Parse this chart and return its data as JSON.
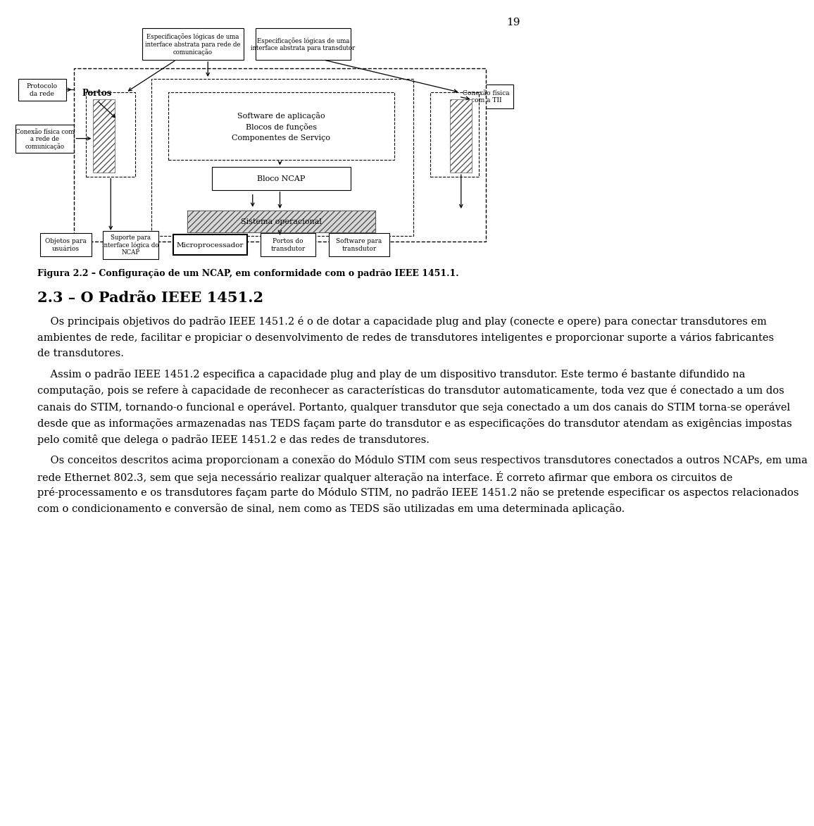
{
  "page_number": "19",
  "background_color": "#ffffff",
  "text_color": "#000000",
  "figure_caption": "Figura 2.2 – Configuração de um NCAP, em conformidade com o padrão IEEE 1451.1.",
  "section_title": "2.3 – O Padrão IEEE 1451.2",
  "paragraphs": [
    "Os principais objetivos do padrão IEEE 1451.2 é o de dotar a capacidade plug and play (conecte e opere) para conectar transdutores em ambientes de rede, facilitar e propiciar o desenvolvimento de redes de transdutores inteligentes e proporcionar suporte a vários fabricantes de transdutores.",
    "Assim o padrão IEEE 1451.2 especifica a capacidade plug and play de um dispositivo transdutor. Este termo é bastante difundido na computação, pois se refere à capacidade de reconhecer as características do transdutor automaticamente, toda vez que é conectado a um dos canais do STIM, tornando-o funcional e operável. Portanto, qualquer transdutor que seja conectado a um dos canais do STIM torna-se operável desde que as informações armazenadas nas TEDS façam parte do transdutor e as especificações do transdutor atendam as exigências impostas pelo comitê que delega o padrão IEEE 1451.2 e das redes de transdutores.",
    "Os conceitos descritos acima proporcionam a conexão do Módulo STIM com seus respectivos transdutores conectados a outros NCAPs, em uma rede Ethernet 802.3, sem que seja necessário realizar qualquer alteração na interface. É correto afirmar que embora os circuitos de pré-processamento e os transdutores façam parte do Módulo STIM, no padrão IEEE 1451.2 não se pretende especificar os aspectos relacionados com o condicionamento e conversão de sinal, nem como as TEDS são utilizadas em uma determinada aplicação."
  ]
}
